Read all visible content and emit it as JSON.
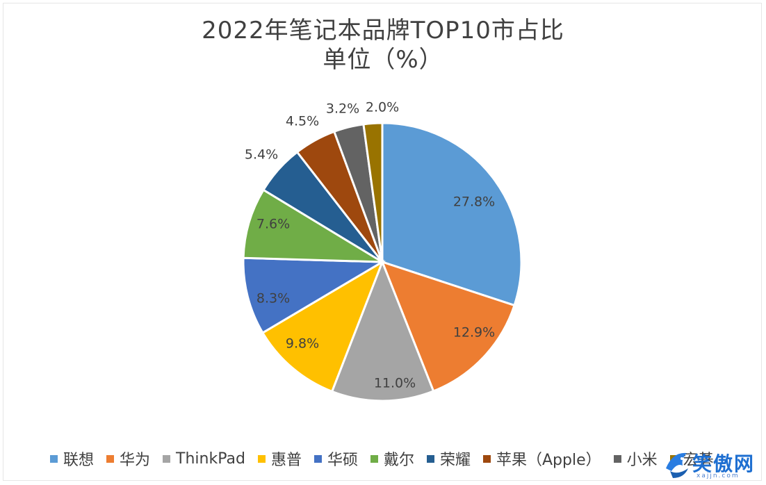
{
  "chart_data": {
    "type": "pie",
    "title": "2022年笔记本品牌TOP10市占比",
    "subtitle": "单位（%）",
    "categories": [
      "联想",
      "华为",
      "ThinkPad",
      "惠普",
      "华硕",
      "戴尔",
      "荣耀",
      "苹果（Apple）",
      "小米",
      "宏碁"
    ],
    "values": [
      27.8,
      12.9,
      11.0,
      9.8,
      8.3,
      7.6,
      5.4,
      4.5,
      3.2,
      2.0
    ],
    "labels": [
      "27.8%",
      "12.9%",
      "11.0%",
      "9.8%",
      "8.3%",
      "7.6%",
      "5.4%",
      "4.5%",
      "3.2%",
      "2.0%"
    ],
    "colors": [
      "#5b9bd5",
      "#ed7d31",
      "#a5a5a5",
      "#ffc000",
      "#4472c4",
      "#70ad47",
      "#255e91",
      "#9e480e",
      "#636363",
      "#997300"
    ],
    "legend_position": "bottom"
  },
  "watermark": {
    "text": "笑傲网",
    "sub": "xajjn.com"
  }
}
